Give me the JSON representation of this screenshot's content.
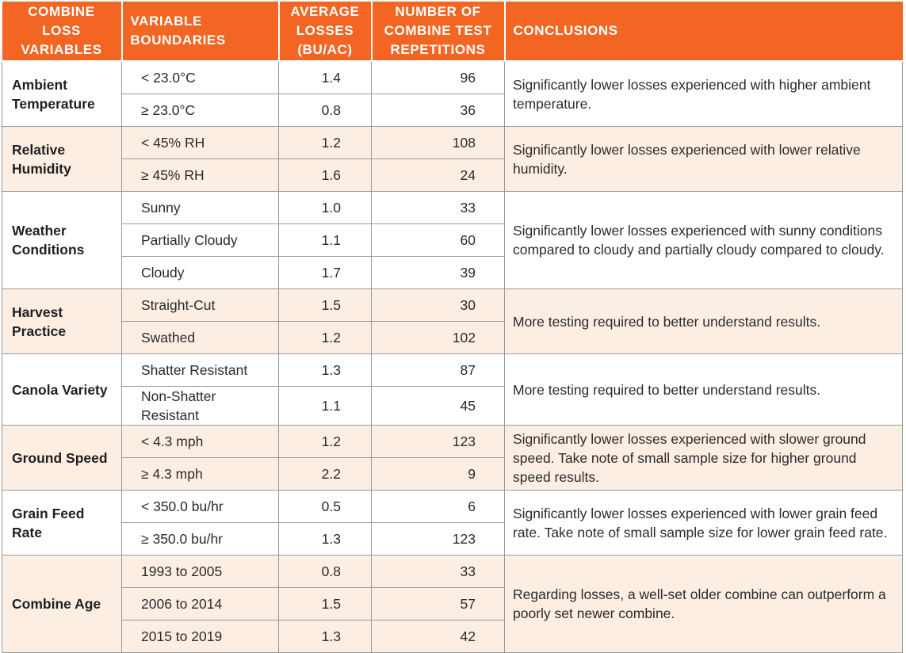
{
  "headers": {
    "variable": "COMBINE LOSS VARIABLES",
    "boundaries": "VARIABLE BOUNDARIES",
    "avg_losses": "AVERAGE LOSSES (BU/AC)",
    "reps": "NUMBER OF COMBINE TEST REPETITIONS",
    "conclusions": "CONCLUSIONS"
  },
  "groups": [
    {
      "variable": "Ambient Temperature",
      "conclusion": "Significantly lower losses experienced with higher ambient temperature.",
      "rows": [
        {
          "boundary": "< 23.0°C",
          "avg": "1.4",
          "reps": "96"
        },
        {
          "boundary": "≥ 23.0°C",
          "avg": "0.8",
          "reps": "36"
        }
      ]
    },
    {
      "variable": "Relative Humidity",
      "conclusion": "Significantly lower losses experienced with lower relative humidity.",
      "rows": [
        {
          "boundary": "< 45% RH",
          "avg": "1.2",
          "reps": "108"
        },
        {
          "boundary": "≥ 45% RH",
          "avg": "1.6",
          "reps": "24"
        }
      ]
    },
    {
      "variable": "Weather Conditions",
      "conclusion": "Significantly lower losses experienced with sunny conditions compared to cloudy and partially cloudy compared to cloudy.",
      "rows": [
        {
          "boundary": "Sunny",
          "avg": "1.0",
          "reps": "33"
        },
        {
          "boundary": "Partially Cloudy",
          "avg": "1.1",
          "reps": "60"
        },
        {
          "boundary": "Cloudy",
          "avg": "1.7",
          "reps": "39"
        }
      ]
    },
    {
      "variable": "Harvest Practice",
      "conclusion": "More testing required to better understand results.",
      "rows": [
        {
          "boundary": "Straight-Cut",
          "avg": "1.5",
          "reps": "30"
        },
        {
          "boundary": "Swathed",
          "avg": "1.2",
          "reps": "102"
        }
      ]
    },
    {
      "variable": "Canola Variety",
      "conclusion": "More testing required to better understand results.",
      "rows": [
        {
          "boundary": "Shatter Resistant",
          "avg": "1.3",
          "reps": "87"
        },
        {
          "boundary": "Non-Shatter Resistant",
          "avg": "1.1",
          "reps": "45"
        }
      ]
    },
    {
      "variable": "Ground Speed",
      "conclusion": "Significantly lower losses experienced with slower ground speed. Take note of small sample size for higher ground speed results.",
      "rows": [
        {
          "boundary": "< 4.3 mph",
          "avg": "1.2",
          "reps": "123"
        },
        {
          "boundary": "≥ 4.3 mph",
          "avg": "2.2",
          "reps": "9"
        }
      ]
    },
    {
      "variable": "Grain Feed Rate",
      "conclusion": "Significantly lower losses experienced with lower grain feed rate. Take note of small sample size for lower grain feed rate.",
      "rows": [
        {
          "boundary": "< 350.0 bu/hr",
          "avg": "0.5",
          "reps": "6"
        },
        {
          "boundary": "≥ 350.0 bu/hr",
          "avg": "1.3",
          "reps": "123"
        }
      ]
    },
    {
      "variable": "Combine Age",
      "conclusion": "Regarding losses, a well-set older combine can outperform a poorly set newer combine.",
      "rows": [
        {
          "boundary": "1993 to 2005",
          "avg": "0.8",
          "reps": "33"
        },
        {
          "boundary": "2006 to 2014",
          "avg": "1.5",
          "reps": "57"
        },
        {
          "boundary": "2015 to 2019",
          "avg": "1.3",
          "reps": "42"
        }
      ]
    }
  ],
  "colors": {
    "header_bg": "#f26522",
    "shade_bg": "#fdeee4",
    "border": "#9a9a9a"
  }
}
